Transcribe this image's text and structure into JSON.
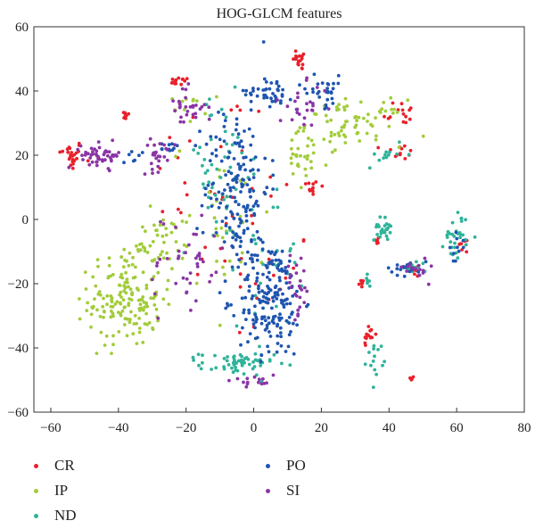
{
  "chart_data": {
    "type": "scatter",
    "title": "HOG-GLCM features",
    "xlabel": "",
    "ylabel": "",
    "xlim": [
      -65,
      80
    ],
    "ylim": [
      -60,
      60
    ],
    "xticks": [
      -60,
      -40,
      -20,
      0,
      20,
      40,
      60,
      80
    ],
    "yticks": [
      -60,
      -40,
      -20,
      0,
      20,
      40,
      60
    ],
    "grid": false,
    "legend_position": "bottom",
    "series": [
      {
        "name": "CR",
        "color": "#e8202a",
        "clusters": [
          {
            "cx": -54,
            "cy": 20,
            "sx": 3,
            "sy": 4,
            "n": 25
          },
          {
            "cx": -38,
            "cy": 32,
            "sx": 1.5,
            "sy": 1.5,
            "n": 8
          },
          {
            "cx": -22,
            "cy": 43,
            "sx": 2.5,
            "sy": 1,
            "n": 14
          },
          {
            "cx": 14,
            "cy": 50,
            "sx": 2,
            "sy": 3,
            "n": 18
          },
          {
            "cx": 43,
            "cy": 33,
            "sx": 4,
            "sy": 4,
            "n": 14
          },
          {
            "cx": 43,
            "cy": 21,
            "sx": 4,
            "sy": 2,
            "n": 12
          },
          {
            "cx": 17,
            "cy": 10,
            "sx": 3,
            "sy": 3,
            "n": 12
          },
          {
            "cx": 34,
            "cy": -36,
            "sx": 1.5,
            "sy": 3,
            "n": 14
          },
          {
            "cx": 32,
            "cy": -20,
            "sx": 1,
            "sy": 2,
            "n": 6
          },
          {
            "cx": 36,
            "cy": -7,
            "sx": 1,
            "sy": 1.5,
            "n": 6
          },
          {
            "cx": 48,
            "cy": -16,
            "sx": 1.5,
            "sy": 2,
            "n": 8
          },
          {
            "cx": 62,
            "cy": -8,
            "sx": 2,
            "sy": 2,
            "n": 8
          },
          {
            "cx": 47,
            "cy": -49.5,
            "sx": 0.6,
            "sy": 0.6,
            "n": 4
          },
          {
            "cx": -10,
            "cy": 10,
            "sx": 18,
            "sy": 28,
            "n": 35
          },
          {
            "cx": 5,
            "cy": -20,
            "sx": 10,
            "sy": 18,
            "n": 15
          }
        ]
      },
      {
        "name": "IP",
        "color": "#a2cc3a",
        "clusters": [
          {
            "cx": -38,
            "cy": -25,
            "sx": 9,
            "sy": 12,
            "n": 160
          },
          {
            "cx": -30,
            "cy": -8,
            "sx": 8,
            "sy": 8,
            "n": 40
          },
          {
            "cx": 30,
            "cy": 30,
            "sx": 12,
            "sy": 6,
            "n": 70
          },
          {
            "cx": 15,
            "cy": 18,
            "sx": 6,
            "sy": 8,
            "n": 30
          },
          {
            "cx": -10,
            "cy": 0,
            "sx": 12,
            "sy": 20,
            "n": 40
          },
          {
            "cx": -20,
            "cy": 35,
            "sx": 5,
            "sy": 4,
            "n": 12
          }
        ]
      },
      {
        "name": "ND",
        "color": "#2fb39a",
        "clusters": [
          {
            "cx": 38,
            "cy": -3,
            "sx": 2,
            "sy": 3,
            "n": 25
          },
          {
            "cx": 60,
            "cy": -5,
            "sx": 3,
            "sy": 6,
            "n": 30
          },
          {
            "cx": 48,
            "cy": -15,
            "sx": 3,
            "sy": 2,
            "n": 15
          },
          {
            "cx": 36,
            "cy": -43,
            "sx": 2,
            "sy": 4,
            "n": 14
          },
          {
            "cx": -5,
            "cy": -45,
            "sx": 9,
            "sy": 3,
            "n": 60
          },
          {
            "cx": -10,
            "cy": 15,
            "sx": 10,
            "sy": 20,
            "n": 50
          },
          {
            "cx": 5,
            "cy": -10,
            "sx": 8,
            "sy": 20,
            "n": 30
          },
          {
            "cx": 40,
            "cy": 20,
            "sx": 6,
            "sy": 3,
            "n": 12
          },
          {
            "cx": 33,
            "cy": -20,
            "sx": 1,
            "sy": 2,
            "n": 6
          }
        ]
      },
      {
        "name": "PO",
        "color": "#1f55b0",
        "clusters": [
          {
            "cx": -5,
            "cy": 10,
            "sx": 8,
            "sy": 22,
            "n": 160
          },
          {
            "cx": 5,
            "cy": -25,
            "sx": 8,
            "sy": 15,
            "n": 180
          },
          {
            "cx": 5,
            "cy": 40,
            "sx": 6,
            "sy": 4,
            "n": 40
          },
          {
            "cx": 20,
            "cy": 40,
            "sx": 6,
            "sy": 4,
            "n": 30
          },
          {
            "cx": 45,
            "cy": -15,
            "sx": 5,
            "sy": 2,
            "n": 20
          },
          {
            "cx": 60,
            "cy": -8,
            "sx": 2,
            "sy": 4,
            "n": 10
          },
          {
            "cx": -25,
            "cy": 22,
            "sx": 2,
            "sy": 2,
            "n": 10
          },
          {
            "cx": -35,
            "cy": 20,
            "sx": 3,
            "sy": 3,
            "n": 8
          }
        ]
      },
      {
        "name": "SI",
        "color": "#8a35a6",
        "clusters": [
          {
            "cx": -45,
            "cy": 20,
            "sx": 5,
            "sy": 3,
            "n": 50
          },
          {
            "cx": -28,
            "cy": 20,
            "sx": 4,
            "sy": 4,
            "n": 25
          },
          {
            "cx": -20,
            "cy": 35,
            "sx": 5,
            "sy": 5,
            "n": 30
          },
          {
            "cx": 15,
            "cy": 35,
            "sx": 6,
            "sy": 6,
            "n": 25
          },
          {
            "cx": 13,
            "cy": -20,
            "sx": 3,
            "sy": 8,
            "n": 25
          },
          {
            "cx": -20,
            "cy": -15,
            "sx": 10,
            "sy": 15,
            "n": 40
          },
          {
            "cx": 0,
            "cy": -50,
            "sx": 6,
            "sy": 2,
            "n": 15
          },
          {
            "cx": 48,
            "cy": -15,
            "sx": 3,
            "sy": 3,
            "n": 15
          }
        ]
      }
    ]
  }
}
